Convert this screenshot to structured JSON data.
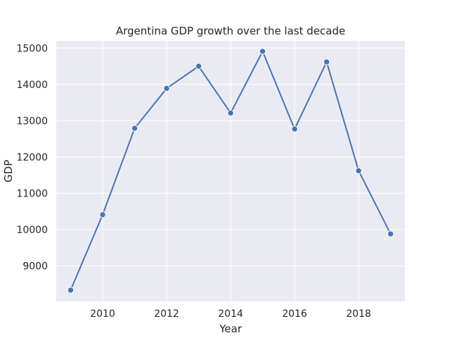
{
  "chart_data": {
    "type": "line",
    "title": "Argentina GDP growth over the last decade",
    "xlabel": "Year",
    "ylabel": "GDP",
    "grid": true,
    "legend": "none",
    "xlim": [
      2008.55,
      2019.45
    ],
    "ylim": [
      8020,
      15200
    ],
    "xticks": [
      2010,
      2012,
      2014,
      2016,
      2018
    ],
    "yticks": [
      9000,
      10000,
      11000,
      12000,
      13000,
      14000,
      15000
    ],
    "series": [
      {
        "name": "GDP",
        "color": "#4c72b0",
        "x": [
          2009,
          2010,
          2011,
          2012,
          2013,
          2014,
          2015,
          2016,
          2017,
          2018,
          2019
        ],
        "y": [
          8330,
          10410,
          12790,
          13890,
          14500,
          13210,
          14910,
          12770,
          14620,
          11620,
          9880
        ]
      }
    ]
  }
}
